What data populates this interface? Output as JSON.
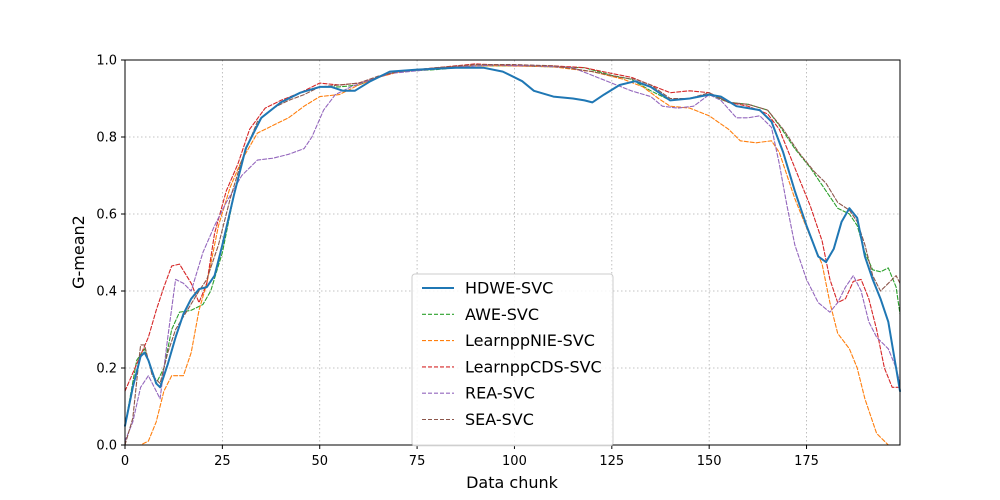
{
  "chart_data": {
    "type": "line",
    "title": "",
    "xlabel": "Data chunk",
    "ylabel": "G-mean2",
    "xlim": [
      0,
      199
    ],
    "ylim": [
      0,
      1.0
    ],
    "xticks": [
      0,
      25,
      50,
      75,
      100,
      125,
      150,
      175
    ],
    "yticks": [
      0.0,
      0.2,
      0.4,
      0.6,
      0.8,
      1.0
    ],
    "xtick_labels": [
      "0",
      "25",
      "50",
      "75",
      "100",
      "125",
      "150",
      "175"
    ],
    "ytick_labels": [
      "0.0",
      "0.2",
      "0.4",
      "0.6",
      "0.8",
      "1.0"
    ],
    "grid": true,
    "legend_position": "bottom-center",
    "series": [
      {
        "name": "HDWE-SVC",
        "color": "#1f77b4",
        "style": "solid",
        "points": [
          [
            0,
            0.05
          ],
          [
            2,
            0.15
          ],
          [
            4,
            0.23
          ],
          [
            5,
            0.24
          ],
          [
            6,
            0.22
          ],
          [
            8,
            0.16
          ],
          [
            9,
            0.15
          ],
          [
            11,
            0.21
          ],
          [
            13,
            0.28
          ],
          [
            15,
            0.34
          ],
          [
            17,
            0.38
          ],
          [
            19,
            0.405
          ],
          [
            21,
            0.41
          ],
          [
            23,
            0.44
          ],
          [
            25,
            0.52
          ],
          [
            28,
            0.65
          ],
          [
            31,
            0.77
          ],
          [
            35,
            0.85
          ],
          [
            40,
            0.89
          ],
          [
            45,
            0.915
          ],
          [
            50,
            0.93
          ],
          [
            53,
            0.93
          ],
          [
            56,
            0.92
          ],
          [
            59,
            0.92
          ],
          [
            63,
            0.945
          ],
          [
            68,
            0.97
          ],
          [
            75,
            0.975
          ],
          [
            85,
            0.98
          ],
          [
            92,
            0.98
          ],
          [
            97,
            0.97
          ],
          [
            102,
            0.945
          ],
          [
            105,
            0.92
          ],
          [
            110,
            0.905
          ],
          [
            115,
            0.9
          ],
          [
            118,
            0.895
          ],
          [
            120,
            0.89
          ],
          [
            123,
            0.91
          ],
          [
            127,
            0.935
          ],
          [
            131,
            0.945
          ],
          [
            135,
            0.93
          ],
          [
            140,
            0.895
          ],
          [
            145,
            0.9
          ],
          [
            150,
            0.91
          ],
          [
            153,
            0.905
          ],
          [
            157,
            0.88
          ],
          [
            160,
            0.875
          ],
          [
            163,
            0.87
          ],
          [
            166,
            0.84
          ],
          [
            169,
            0.76
          ],
          [
            172,
            0.66
          ],
          [
            175,
            0.57
          ],
          [
            178,
            0.49
          ],
          [
            180,
            0.475
          ],
          [
            182,
            0.51
          ],
          [
            184,
            0.58
          ],
          [
            186,
            0.615
          ],
          [
            188,
            0.59
          ],
          [
            190,
            0.49
          ],
          [
            192,
            0.43
          ],
          [
            194,
            0.38
          ],
          [
            196,
            0.32
          ],
          [
            198,
            0.2
          ],
          [
            199,
            0.14
          ]
        ]
      },
      {
        "name": "AWE-SVC",
        "color": "#2ca02c",
        "style": "dashed",
        "points": [
          [
            0,
            0.05
          ],
          [
            3,
            0.22
          ],
          [
            5,
            0.25
          ],
          [
            8,
            0.16
          ],
          [
            10,
            0.2
          ],
          [
            12,
            0.3
          ],
          [
            14,
            0.345
          ],
          [
            17,
            0.35
          ],
          [
            20,
            0.365
          ],
          [
            22,
            0.4
          ],
          [
            25,
            0.5
          ],
          [
            28,
            0.65
          ],
          [
            31,
            0.77
          ],
          [
            35,
            0.85
          ],
          [
            40,
            0.89
          ],
          [
            45,
            0.915
          ],
          [
            50,
            0.93
          ],
          [
            55,
            0.93
          ],
          [
            60,
            0.935
          ],
          [
            65,
            0.955
          ],
          [
            70,
            0.97
          ],
          [
            80,
            0.975
          ],
          [
            90,
            0.985
          ],
          [
            100,
            0.985
          ],
          [
            110,
            0.982
          ],
          [
            118,
            0.98
          ],
          [
            125,
            0.96
          ],
          [
            130,
            0.95
          ],
          [
            135,
            0.92
          ],
          [
            140,
            0.895
          ],
          [
            145,
            0.9
          ],
          [
            150,
            0.91
          ],
          [
            155,
            0.89
          ],
          [
            160,
            0.885
          ],
          [
            165,
            0.87
          ],
          [
            168,
            0.83
          ],
          [
            172,
            0.77
          ],
          [
            176,
            0.72
          ],
          [
            180,
            0.66
          ],
          [
            183,
            0.615
          ],
          [
            186,
            0.6
          ],
          [
            188,
            0.57
          ],
          [
            190,
            0.5
          ],
          [
            192,
            0.455
          ],
          [
            194,
            0.45
          ],
          [
            196,
            0.46
          ],
          [
            198,
            0.41
          ],
          [
            199,
            0.34
          ]
        ]
      },
      {
        "name": "LearnppNIE-SVC",
        "color": "#ff7f0e",
        "style": "dashed",
        "points": [
          [
            0,
            0.0
          ],
          [
            4,
            0.0
          ],
          [
            6,
            0.01
          ],
          [
            8,
            0.06
          ],
          [
            10,
            0.14
          ],
          [
            12,
            0.18
          ],
          [
            15,
            0.18
          ],
          [
            17,
            0.24
          ],
          [
            19,
            0.35
          ],
          [
            21,
            0.42
          ],
          [
            24,
            0.57
          ],
          [
            27,
            0.67
          ],
          [
            30,
            0.74
          ],
          [
            34,
            0.81
          ],
          [
            38,
            0.83
          ],
          [
            42,
            0.85
          ],
          [
            46,
            0.88
          ],
          [
            50,
            0.905
          ],
          [
            55,
            0.91
          ],
          [
            60,
            0.935
          ],
          [
            65,
            0.955
          ],
          [
            70,
            0.968
          ],
          [
            80,
            0.98
          ],
          [
            90,
            0.985
          ],
          [
            100,
            0.985
          ],
          [
            110,
            0.982
          ],
          [
            120,
            0.97
          ],
          [
            128,
            0.95
          ],
          [
            133,
            0.93
          ],
          [
            137,
            0.9
          ],
          [
            140,
            0.88
          ],
          [
            145,
            0.875
          ],
          [
            150,
            0.855
          ],
          [
            155,
            0.82
          ],
          [
            158,
            0.79
          ],
          [
            162,
            0.785
          ],
          [
            166,
            0.79
          ],
          [
            168,
            0.76
          ],
          [
            172,
            0.64
          ],
          [
            176,
            0.54
          ],
          [
            179,
            0.47
          ],
          [
            181,
            0.37
          ],
          [
            183,
            0.29
          ],
          [
            186,
            0.25
          ],
          [
            188,
            0.2
          ],
          [
            190,
            0.12
          ],
          [
            193,
            0.03
          ],
          [
            196,
            0.0
          ],
          [
            199,
            0.0
          ]
        ]
      },
      {
        "name": "LearnppCDS-SVC",
        "color": "#d62728",
        "style": "dashed",
        "points": [
          [
            0,
            0.14
          ],
          [
            3,
            0.21
          ],
          [
            6,
            0.28
          ],
          [
            8,
            0.35
          ],
          [
            10,
            0.41
          ],
          [
            12,
            0.465
          ],
          [
            14,
            0.47
          ],
          [
            17,
            0.42
          ],
          [
            19,
            0.37
          ],
          [
            21,
            0.42
          ],
          [
            23,
            0.55
          ],
          [
            26,
            0.66
          ],
          [
            29,
            0.73
          ],
          [
            32,
            0.82
          ],
          [
            36,
            0.875
          ],
          [
            40,
            0.895
          ],
          [
            45,
            0.915
          ],
          [
            50,
            0.94
          ],
          [
            55,
            0.935
          ],
          [
            60,
            0.94
          ],
          [
            65,
            0.955
          ],
          [
            70,
            0.97
          ],
          [
            80,
            0.98
          ],
          [
            90,
            0.99
          ],
          [
            100,
            0.985
          ],
          [
            110,
            0.985
          ],
          [
            118,
            0.98
          ],
          [
            125,
            0.965
          ],
          [
            130,
            0.955
          ],
          [
            135,
            0.935
          ],
          [
            140,
            0.915
          ],
          [
            145,
            0.92
          ],
          [
            150,
            0.915
          ],
          [
            155,
            0.89
          ],
          [
            160,
            0.88
          ],
          [
            165,
            0.86
          ],
          [
            168,
            0.82
          ],
          [
            172,
            0.72
          ],
          [
            176,
            0.62
          ],
          [
            179,
            0.53
          ],
          [
            181,
            0.43
          ],
          [
            183,
            0.37
          ],
          [
            185,
            0.38
          ],
          [
            187,
            0.425
          ],
          [
            189,
            0.43
          ],
          [
            191,
            0.38
          ],
          [
            193,
            0.3
          ],
          [
            195,
            0.2
          ],
          [
            197,
            0.15
          ],
          [
            199,
            0.15
          ]
        ]
      },
      {
        "name": "REA-SVC",
        "color": "#9467bd",
        "style": "dashed",
        "points": [
          [
            0,
            0.01
          ],
          [
            2,
            0.06
          ],
          [
            4,
            0.15
          ],
          [
            6,
            0.18
          ],
          [
            9,
            0.12
          ],
          [
            11,
            0.28
          ],
          [
            13,
            0.43
          ],
          [
            15,
            0.42
          ],
          [
            17,
            0.4
          ],
          [
            20,
            0.5
          ],
          [
            23,
            0.57
          ],
          [
            26,
            0.63
          ],
          [
            30,
            0.7
          ],
          [
            34,
            0.74
          ],
          [
            38,
            0.745
          ],
          [
            42,
            0.755
          ],
          [
            46,
            0.77
          ],
          [
            48,
            0.8
          ],
          [
            51,
            0.87
          ],
          [
            54,
            0.91
          ],
          [
            58,
            0.93
          ],
          [
            62,
            0.945
          ],
          [
            68,
            0.965
          ],
          [
            75,
            0.972
          ],
          [
            85,
            0.982
          ],
          [
            95,
            0.987
          ],
          [
            105,
            0.985
          ],
          [
            115,
            0.98
          ],
          [
            125,
            0.94
          ],
          [
            130,
            0.92
          ],
          [
            135,
            0.905
          ],
          [
            138,
            0.88
          ],
          [
            142,
            0.875
          ],
          [
            146,
            0.88
          ],
          [
            150,
            0.91
          ],
          [
            153,
            0.895
          ],
          [
            157,
            0.85
          ],
          [
            160,
            0.85
          ],
          [
            163,
            0.855
          ],
          [
            166,
            0.825
          ],
          [
            168,
            0.73
          ],
          [
            170,
            0.62
          ],
          [
            172,
            0.52
          ],
          [
            175,
            0.43
          ],
          [
            178,
            0.37
          ],
          [
            181,
            0.345
          ],
          [
            183,
            0.37
          ],
          [
            185,
            0.41
          ],
          [
            187,
            0.44
          ],
          [
            189,
            0.4
          ],
          [
            191,
            0.32
          ],
          [
            193,
            0.28
          ],
          [
            196,
            0.25
          ],
          [
            198,
            0.2
          ],
          [
            199,
            0.16
          ]
        ]
      },
      {
        "name": "SEA-SVC",
        "color": "#8c564b",
        "style": "dashed",
        "points": [
          [
            0,
            0.0
          ],
          [
            2,
            0.07
          ],
          [
            4,
            0.26
          ],
          [
            5,
            0.26
          ],
          [
            7,
            0.18
          ],
          [
            9,
            0.16
          ],
          [
            11,
            0.24
          ],
          [
            13,
            0.3
          ],
          [
            16,
            0.35
          ],
          [
            19,
            0.4
          ],
          [
            21,
            0.43
          ],
          [
            24,
            0.52
          ],
          [
            27,
            0.64
          ],
          [
            30,
            0.74
          ],
          [
            34,
            0.84
          ],
          [
            38,
            0.875
          ],
          [
            42,
            0.895
          ],
          [
            46,
            0.91
          ],
          [
            50,
            0.93
          ],
          [
            55,
            0.935
          ],
          [
            60,
            0.94
          ],
          [
            65,
            0.958
          ],
          [
            70,
            0.97
          ],
          [
            80,
            0.98
          ],
          [
            90,
            0.988
          ],
          [
            100,
            0.988
          ],
          [
            110,
            0.985
          ],
          [
            120,
            0.97
          ],
          [
            127,
            0.955
          ],
          [
            131,
            0.95
          ],
          [
            135,
            0.935
          ],
          [
            140,
            0.9
          ],
          [
            145,
            0.9
          ],
          [
            150,
            0.915
          ],
          [
            155,
            0.89
          ],
          [
            160,
            0.885
          ],
          [
            165,
            0.87
          ],
          [
            169,
            0.82
          ],
          [
            173,
            0.76
          ],
          [
            177,
            0.71
          ],
          [
            180,
            0.68
          ],
          [
            183,
            0.63
          ],
          [
            186,
            0.61
          ],
          [
            188,
            0.58
          ],
          [
            190,
            0.52
          ],
          [
            192,
            0.44
          ],
          [
            194,
            0.4
          ],
          [
            196,
            0.42
          ],
          [
            198,
            0.44
          ],
          [
            199,
            0.42
          ]
        ]
      }
    ]
  }
}
